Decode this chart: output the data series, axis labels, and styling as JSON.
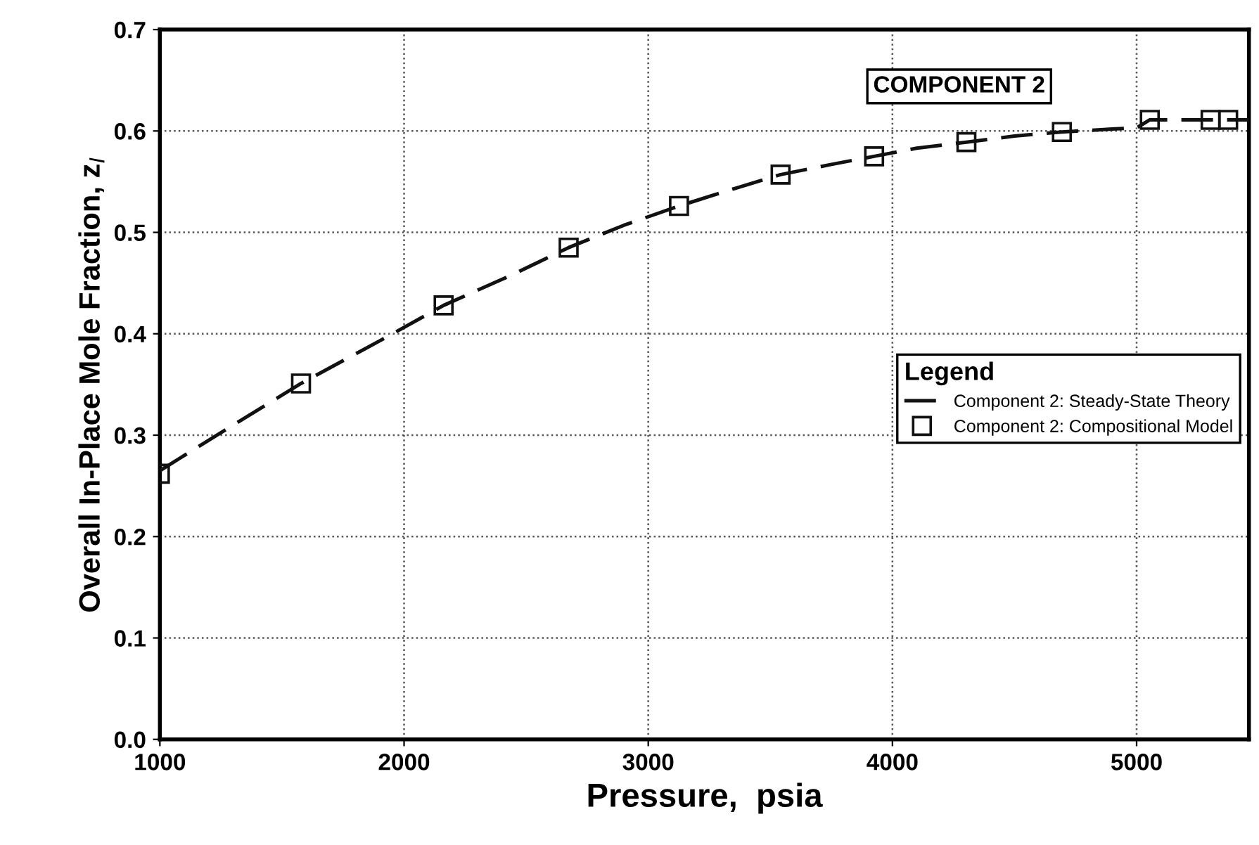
{
  "chart_data": {
    "type": "line",
    "xlabel": "Pressure,  psia",
    "ylabel": "Overall In-Place Mole Fraction, z$_{I}$",
    "annotations": [
      "COMPONENT 2"
    ],
    "legend_title": "Legend",
    "xlim": [
      1000,
      5460
    ],
    "ylim": [
      0.0,
      0.7
    ],
    "xticks": [
      1000,
      2000,
      3000,
      4000,
      5000
    ],
    "yticks": [
      {
        "value": 0.0,
        "label": "0.0"
      },
      0.1,
      0.2,
      0.3,
      0.4,
      0.5,
      0.6,
      0.7
    ],
    "grid": true,
    "legend": "right",
    "series": [
      {
        "name": "Component 2: Steady-State Theory",
        "line_style": "dashed",
        "marker": "none",
        "color": "#111111",
        "x": [
          1000,
          1300,
          1578,
          1900,
          2162,
          2450,
          2674,
          2900,
          3126,
          3350,
          3542,
          3750,
          3925,
          4100,
          4303,
          4500,
          4694,
          4900,
          5000,
          5054,
          5200,
          5375,
          5460
        ],
        "values": [
          0.265,
          0.31,
          0.351,
          0.393,
          0.428,
          0.459,
          0.485,
          0.507,
          0.526,
          0.543,
          0.557,
          0.567,
          0.575,
          0.583,
          0.589,
          0.595,
          0.599,
          0.602,
          0.603,
          0.611,
          0.611,
          0.611,
          0.611
        ]
      },
      {
        "name": "Component 2: Compositional Model",
        "type": "scatter",
        "marker": "square",
        "color": "#111111",
        "x": [
          1000,
          1578,
          2162,
          2674,
          3126,
          3542,
          3925,
          4303,
          4694,
          5054,
          5303,
          5375
        ],
        "values": [
          0.262,
          0.351,
          0.428,
          0.485,
          0.526,
          0.557,
          0.575,
          0.589,
          0.599,
          0.611,
          0.611,
          0.611
        ]
      }
    ]
  }
}
